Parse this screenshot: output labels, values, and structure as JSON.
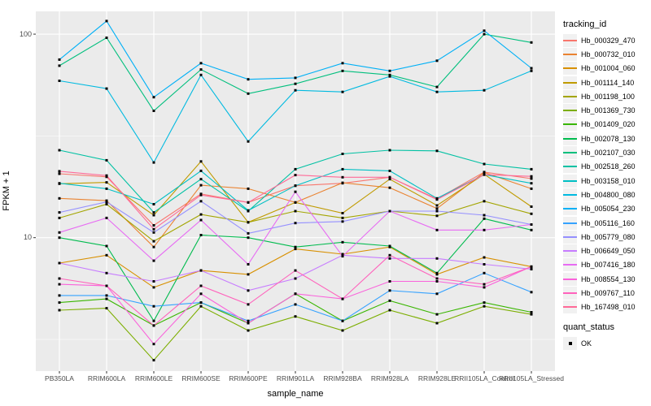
{
  "figure": {
    "y_tick_labels": [
      "100",
      "10"
    ],
    "legend": {
      "title": "tracking_id"
    },
    "legend2": {
      "title": "quant_status",
      "items": [
        "OK"
      ]
    }
  },
  "chart_data": {
    "type": "line",
    "title": "",
    "xlabel": "sample_name",
    "ylabel": "FPKM + 1",
    "y_scale": "log10",
    "ylim": [
      2.21,
      129.4
    ],
    "y_major_ticks": [
      100,
      10
    ],
    "y_minor_gridlines": [
      31.62,
      3.162
    ],
    "grid": true,
    "legend_position": "right",
    "panel_background": "#EBEBEB",
    "gridline_color": "#FFFFFF",
    "axis_text_color": "#4D4D4D",
    "tick_color": "#333333",
    "marker": {
      "shape": "square",
      "color": "#000000",
      "meaning": "quant_status OK"
    },
    "x_categories": [
      "PB350LA",
      "RRIM600LA",
      "RRIM600LE",
      "RRIM600SE",
      "RRIM600PE",
      "RRIM901LA",
      "RRIM928BA",
      "RRIM928LA",
      "RRIM928LE",
      "RRII105LA_Control",
      "RRII105LA_Stressed"
    ],
    "series": [
      {
        "name": "Hb_000329_470",
        "color": "#F8766D",
        "values": [
          20.6,
          19.9,
          11.5,
          16.4,
          14.9,
          18.0,
          18.5,
          19.8,
          15.5,
          21.0,
          19.5
        ]
      },
      {
        "name": "Hb_000732_010",
        "color": "#EA8331",
        "values": [
          15.6,
          15.2,
          9.0,
          18.1,
          17.4,
          14.9,
          18.6,
          17.6,
          13.9,
          20.9,
          17.4
        ]
      },
      {
        "name": "Hb_001004_060",
        "color": "#D89000",
        "values": [
          7.5,
          8.2,
          5.7,
          6.9,
          6.6,
          8.8,
          8.3,
          9.0,
          6.6,
          8.0,
          7.2
        ]
      },
      {
        "name": "Hb_001114_140",
        "color": "#C09B00",
        "values": [
          18.4,
          18.7,
          12.9,
          23.7,
          11.9,
          14.9,
          13.2,
          19.4,
          14.4,
          20.5,
          14.2
        ]
      },
      {
        "name": "Hb_001198_100",
        "color": "#A3A500",
        "values": [
          12.5,
          14.6,
          9.6,
          13.0,
          11.9,
          13.5,
          12.5,
          13.5,
          12.8,
          15.1,
          13.1
        ]
      },
      {
        "name": "Hb_001369_730",
        "color": "#7CAE00",
        "values": [
          4.4,
          4.5,
          2.5,
          4.6,
          3.5,
          4.1,
          3.5,
          4.4,
          3.8,
          4.6,
          4.2
        ]
      },
      {
        "name": "Hb_001409_020",
        "color": "#39B600",
        "values": [
          4.8,
          5.0,
          3.7,
          4.8,
          3.8,
          5.3,
          3.9,
          4.9,
          4.2,
          4.8,
          4.3
        ]
      },
      {
        "name": "Hb_002078_130",
        "color": "#00BB4E",
        "values": [
          10.0,
          9.1,
          3.9,
          10.3,
          10.0,
          9.0,
          9.5,
          9.1,
          6.7,
          12.4,
          10.9
        ]
      },
      {
        "name": "Hb_002107_030",
        "color": "#00BF7D",
        "values": [
          70,
          96,
          42,
          67,
          51,
          57,
          66,
          63,
          55,
          100,
          91
        ]
      },
      {
        "name": "Hb_002518_260",
        "color": "#00C1A3",
        "values": [
          26.9,
          24.0,
          13.3,
          19.4,
          13.5,
          21.7,
          25.8,
          26.9,
          26.7,
          23.0,
          21.7
        ]
      },
      {
        "name": "Hb_003158_010",
        "color": "#00BFC4",
        "values": [
          18.5,
          17.4,
          14.6,
          21.3,
          13.6,
          18.0,
          21.7,
          21.3,
          15.6,
          20.4,
          18.5
        ]
      },
      {
        "name": "Hb_004800_080",
        "color": "#00BAE0",
        "values": [
          59,
          54,
          23.4,
          63,
          29.7,
          53,
          52,
          62,
          52,
          53,
          66
        ]
      },
      {
        "name": "Hb_005054_230",
        "color": "#00B0F6",
        "values": [
          75,
          116,
          49,
          72,
          60,
          61,
          72,
          66,
          74,
          104,
          68
        ]
      },
      {
        "name": "Hb_005116_160",
        "color": "#35A2FF",
        "values": [
          5.2,
          5.2,
          4.6,
          4.8,
          3.9,
          4.7,
          3.9,
          5.5,
          5.3,
          6.7,
          5.4
        ]
      },
      {
        "name": "Hb_005779_080",
        "color": "#9590FF",
        "values": [
          13.3,
          15.0,
          10.6,
          15.1,
          10.5,
          11.8,
          12.0,
          13.5,
          13.5,
          12.9,
          11.6
        ]
      },
      {
        "name": "Hb_006649_050",
        "color": "#C77CFF",
        "values": [
          7.5,
          6.7,
          6.1,
          6.9,
          5.5,
          6.3,
          8.2,
          7.9,
          7.9,
          7.4,
          7.0
        ]
      },
      {
        "name": "Hb_007416_180",
        "color": "#E76BF3",
        "values": [
          10.6,
          12.5,
          7.7,
          12.2,
          7.4,
          16.8,
          8.1,
          13.5,
          10.9,
          10.9,
          11.6
        ]
      },
      {
        "name": "Hb_008554_130",
        "color": "#FA62DB",
        "values": [
          5.9,
          5.8,
          3.0,
          5.3,
          3.8,
          5.3,
          5.0,
          6.1,
          6.1,
          5.7,
          7.2
        ]
      },
      {
        "name": "Hb_009767_110",
        "color": "#FF62BC",
        "values": [
          6.3,
          5.8,
          3.7,
          5.8,
          4.7,
          6.9,
          5.0,
          8.2,
          6.3,
          5.9,
          7.2
        ]
      },
      {
        "name": "Hb_167498_010",
        "color": "#FF6A98",
        "values": [
          21.2,
          20.2,
          11.0,
          16.2,
          14.9,
          20.3,
          19.8,
          19.8,
          15.4,
          20.4,
          20.0
        ]
      }
    ]
  }
}
